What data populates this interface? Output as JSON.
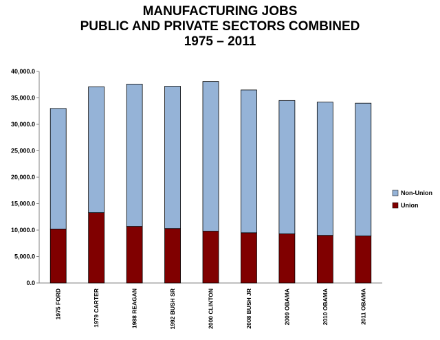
{
  "title_lines": [
    "MANUFACTURING JOBS",
    "PUBLIC AND PRIVATE SECTORS COMBINED",
    "1975 – 2011"
  ],
  "colors": {
    "union": "#800000",
    "non_union": "#95b3d7",
    "axis": "#808080"
  },
  "chart_data": {
    "type": "bar",
    "stacked": true,
    "title": "MANUFACTURING JOBS PUBLIC AND PRIVATE SECTORS COMBINED 1975 – 2011",
    "categories": [
      "1975 FORD",
      "1979 CARTER",
      "1988 REAGAN",
      "1992 BUSH SR",
      "2000 CLINTON",
      "2008 BUSH JR",
      "2009 OBAMA",
      "2010 OBAMA",
      "2011 OBAMA"
    ],
    "series": [
      {
        "name": "Union",
        "values": [
          10200,
          13300,
          10700,
          10300,
          9800,
          9500,
          9300,
          9000,
          8900
        ]
      },
      {
        "name": "Non-Union",
        "values": [
          22800,
          23800,
          26900,
          26900,
          28300,
          27000,
          25200,
          25200,
          25100
        ]
      }
    ],
    "ylim": [
      0,
      40000
    ],
    "yticks": [
      "0.0",
      "5,000.0",
      "10,000.0",
      "15,000.0",
      "20,000.0",
      "25,000.0",
      "30,000.0",
      "35,000.0",
      "40,000.0"
    ],
    "xlabel": "",
    "ylabel": "",
    "grid": false,
    "legend": {
      "position": "right",
      "entries": [
        "Non-Union",
        "Union"
      ]
    }
  }
}
